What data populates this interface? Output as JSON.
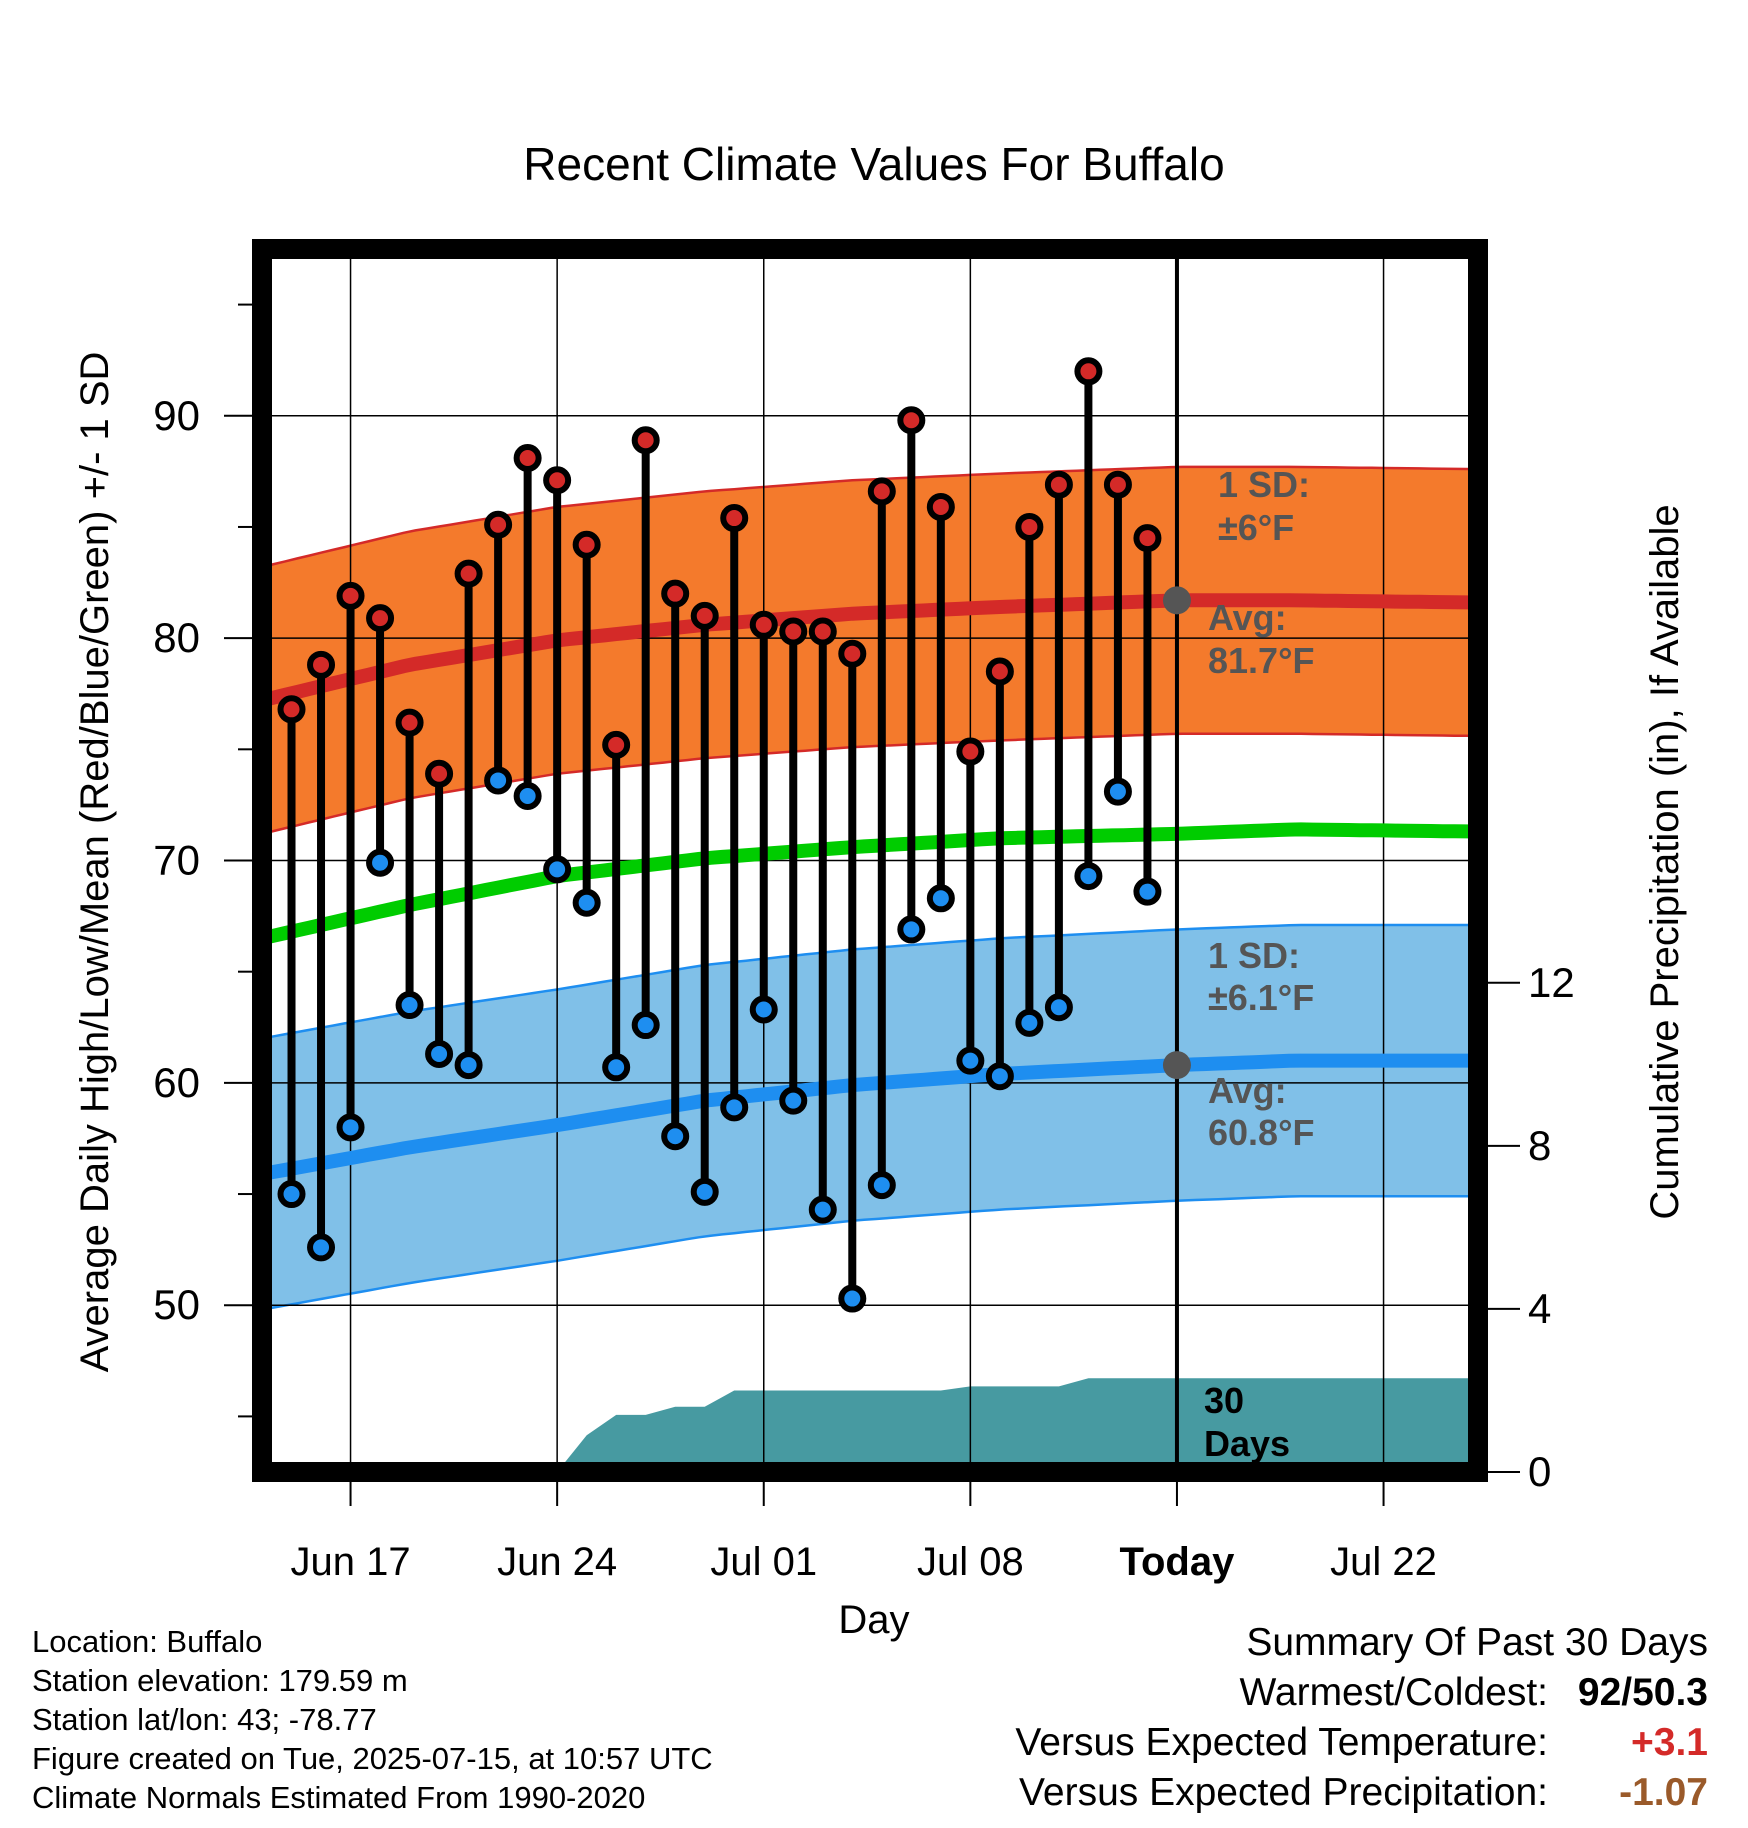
{
  "chart_data": {
    "type": "line",
    "title": "Recent Climate Values For Buffalo",
    "xlabel": "Day",
    "ylabel_left": "Average Daily High/Low/Mean (Red/Blue/Green) +/- 1 SD",
    "ylabel_right": "Cumulative Precipitation (in), If Available",
    "ylim_left": [
      42.5,
      97.5
    ],
    "ylim_right": [
      0,
      30
    ],
    "x_ticks": [
      {
        "day": 3,
        "label": "Jun 17"
      },
      {
        "day": 10,
        "label": "Jun 24"
      },
      {
        "day": 17,
        "label": "Jul 01"
      },
      {
        "day": 24,
        "label": "Jul 08"
      },
      {
        "day": 31,
        "label": "Today"
      },
      {
        "day": 38,
        "label": "Jul 22"
      }
    ],
    "xlim": [
      0,
      41.2
    ],
    "y_ticks_left": [
      50,
      60,
      70,
      80,
      90
    ],
    "y_ticks_right": [
      0,
      4,
      8,
      12
    ],
    "grid": true,
    "today_day": 31,
    "daily_highs": [
      76.8,
      78.8,
      81.9,
      80.9,
      76.2,
      73.9,
      82.9,
      85.1,
      88.1,
      87.1,
      84.2,
      75.2,
      88.9,
      82.0,
      81.0,
      85.4,
      80.6,
      80.3,
      80.3,
      79.3,
      86.6,
      89.8,
      85.9,
      74.9,
      78.5,
      85.0,
      86.9,
      92.0,
      86.9,
      84.5
    ],
    "daily_lows": [
      55.0,
      52.6,
      58.0,
      69.9,
      63.5,
      61.3,
      60.8,
      73.6,
      72.9,
      69.6,
      68.1,
      60.7,
      62.6,
      57.6,
      55.1,
      58.9,
      63.3,
      59.2,
      54.3,
      50.3,
      55.4,
      66.9,
      68.3,
      61.0,
      60.3,
      62.7,
      63.4,
      69.3,
      73.1,
      68.6
    ],
    "normal_high": {
      "days": [
        0,
        5,
        10,
        15,
        20,
        25,
        31,
        35,
        41.2
      ],
      "values": [
        77.2,
        78.8,
        79.9,
        80.6,
        81.1,
        81.4,
        81.7,
        81.7,
        81.6
      ],
      "sd": 6
    },
    "normal_low": {
      "days": [
        0,
        5,
        10,
        15,
        20,
        25,
        31,
        35,
        41.2
      ],
      "values": [
        55.9,
        57.1,
        58.1,
        59.2,
        59.9,
        60.4,
        60.8,
        61.0,
        61.0
      ],
      "sd": 6.1
    },
    "normal_mean": {
      "days": [
        0,
        5,
        10,
        15,
        20,
        25,
        31,
        35,
        41.2
      ],
      "values": [
        66.5,
        68.0,
        69.3,
        70.1,
        70.6,
        71.0,
        71.2,
        71.4,
        71.3
      ]
    },
    "precip": {
      "days": [
        10,
        11,
        12,
        13,
        14,
        15,
        16,
        17,
        18,
        19,
        20,
        21,
        22,
        23,
        24,
        25,
        26,
        27,
        28,
        29,
        30,
        31,
        41.2
      ],
      "values": [
        0,
        0.9,
        1.4,
        1.4,
        1.6,
        1.6,
        2.0,
        2.0,
        2.0,
        2.0,
        2.0,
        2.0,
        2.0,
        2.0,
        2.1,
        2.1,
        2.1,
        2.1,
        2.3,
        2.3,
        2.3,
        2.3,
        2.3
      ]
    },
    "annotations": {
      "high_sd_label1": "1 SD:",
      "high_sd_label2": "±6°F",
      "high_avg_label1": "Avg:",
      "high_avg_label2": "81.7°F",
      "low_sd_label1": "1 SD:",
      "low_sd_label2": "±6.1°F",
      "low_avg_label1": "Avg:",
      "low_avg_label2": "60.8°F",
      "days_label1": "30",
      "days_label2": "Days"
    },
    "colors": {
      "high_band": "#f47a2c",
      "high_line": "#d42a28",
      "low_band": "#80c0e8",
      "low_line": "#1e8ef0",
      "mean_line": "#00cc00",
      "precip_fill": "#479aa1",
      "high_dot": "#d42a28",
      "low_dot": "#1e8ef0",
      "avg_dot": "#555555",
      "annotation_text": "#555555"
    }
  },
  "footer": {
    "location": "Location: Buffalo",
    "elevation": "Station elevation: 179.59 m",
    "latlon": "Station lat/lon: 43; -78.77",
    "created": "Figure created on Tue, 2025-07-15, at 10:57 UTC",
    "normals": "Climate Normals Estimated From 1990-2020"
  },
  "summary": {
    "heading": "Summary Of Past 30 Days",
    "warmest_label": "Warmest/Coldest:",
    "warmest_value": "92/50.3",
    "temp_label": "Versus Expected Temperature:",
    "temp_value": "+3.1",
    "temp_color": "#d42a28",
    "precip_label": "Versus Expected Precipitation:",
    "precip_value": "-1.07",
    "precip_color": "#9a5a2a"
  }
}
